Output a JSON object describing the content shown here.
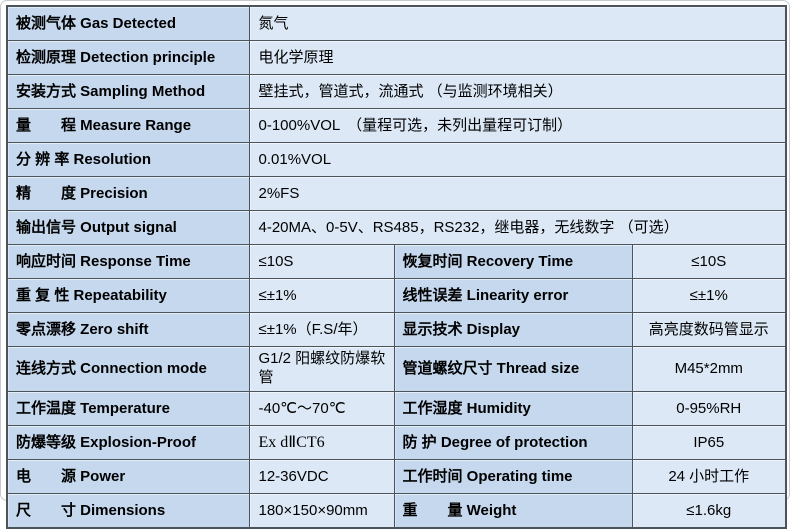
{
  "colors": {
    "label_bg": "#c5d8ee",
    "value_bg": "#dce8f6",
    "border": "#4b545a",
    "text": "#000000",
    "page_bg": "#ffffff"
  },
  "table": {
    "name": "gas-detector-specification-table",
    "rows": [
      {
        "cells": [
          {
            "text": "被测气体 Gas Detected"
          },
          {
            "text": "氮气"
          }
        ]
      },
      {
        "cells": [
          {
            "text": "检测原理 Detection principle"
          },
          {
            "text": "电化学原理"
          }
        ]
      },
      {
        "cells": [
          {
            "text": "安装方式 Sampling Method"
          },
          {
            "text": "壁挂式，管道式，流通式 （与监测环境相关）"
          }
        ]
      },
      {
        "cells": [
          {
            "text": "量　　程 Measure Range"
          },
          {
            "text": "0-100%VOL　（量程可选，未列出量程可订制）"
          }
        ]
      },
      {
        "cells": [
          {
            "text": "分 辨 率 Resolution"
          },
          {
            "text": "0.01%VOL"
          }
        ]
      },
      {
        "cells": [
          {
            "text": "精　　度 Precision"
          },
          {
            "text": "2%FS"
          }
        ]
      },
      {
        "cells": [
          {
            "text": "输出信号 Output signal"
          },
          {
            "text": "4-20MA、0-5V、RS485，RS232，继电器，无线数字 （可选）"
          }
        ]
      },
      {
        "cells": [
          {
            "text": "响应时间 Response Time"
          },
          {
            "text": "≤10S"
          },
          {
            "text": "恢复时间 Recovery Time"
          },
          {
            "text": "≤10S"
          }
        ]
      },
      {
        "cells": [
          {
            "text": "重 复 性 Repeatability"
          },
          {
            "text": "≤±1%"
          },
          {
            "text": "线性误差 Linearity error"
          },
          {
            "text": "≤±1%"
          }
        ]
      },
      {
        "cells": [
          {
            "text": "零点漂移 Zero shift"
          },
          {
            "text": "≤±1%（F.S/年）"
          },
          {
            "text": "显示技术 Display"
          },
          {
            "text": "高亮度数码管显示"
          }
        ]
      },
      {
        "cells": [
          {
            "text": "连线方式 Connection mode"
          },
          {
            "text": "G1/2 阳螺纹防爆软管"
          },
          {
            "text": "管道螺纹尺寸 Thread size"
          },
          {
            "text": "M45*2mm"
          }
        ]
      },
      {
        "cells": [
          {
            "text": "工作温度 Temperature"
          },
          {
            "text": "-40℃～70℃"
          },
          {
            "text": "工作湿度 Humidity"
          },
          {
            "text": "0-95%RH"
          }
        ]
      },
      {
        "cells": [
          {
            "text": "防爆等级 Explosion-Proof"
          },
          {
            "text": "Ex dⅡCT6"
          },
          {
            "text": "防 护 Degree of protection"
          },
          {
            "text": "IP65"
          }
        ]
      },
      {
        "cells": [
          {
            "text": "电　　源 Power"
          },
          {
            "text": "12-36VDC"
          },
          {
            "text": "工作时间 Operating time"
          },
          {
            "text": "24 小时工作"
          }
        ]
      },
      {
        "cells": [
          {
            "text": "尺　　寸 Dimensions"
          },
          {
            "text": "180×150×90mm"
          },
          {
            "text": "重　　量 Weight"
          },
          {
            "text": "≤1.6kg"
          }
        ]
      }
    ]
  }
}
